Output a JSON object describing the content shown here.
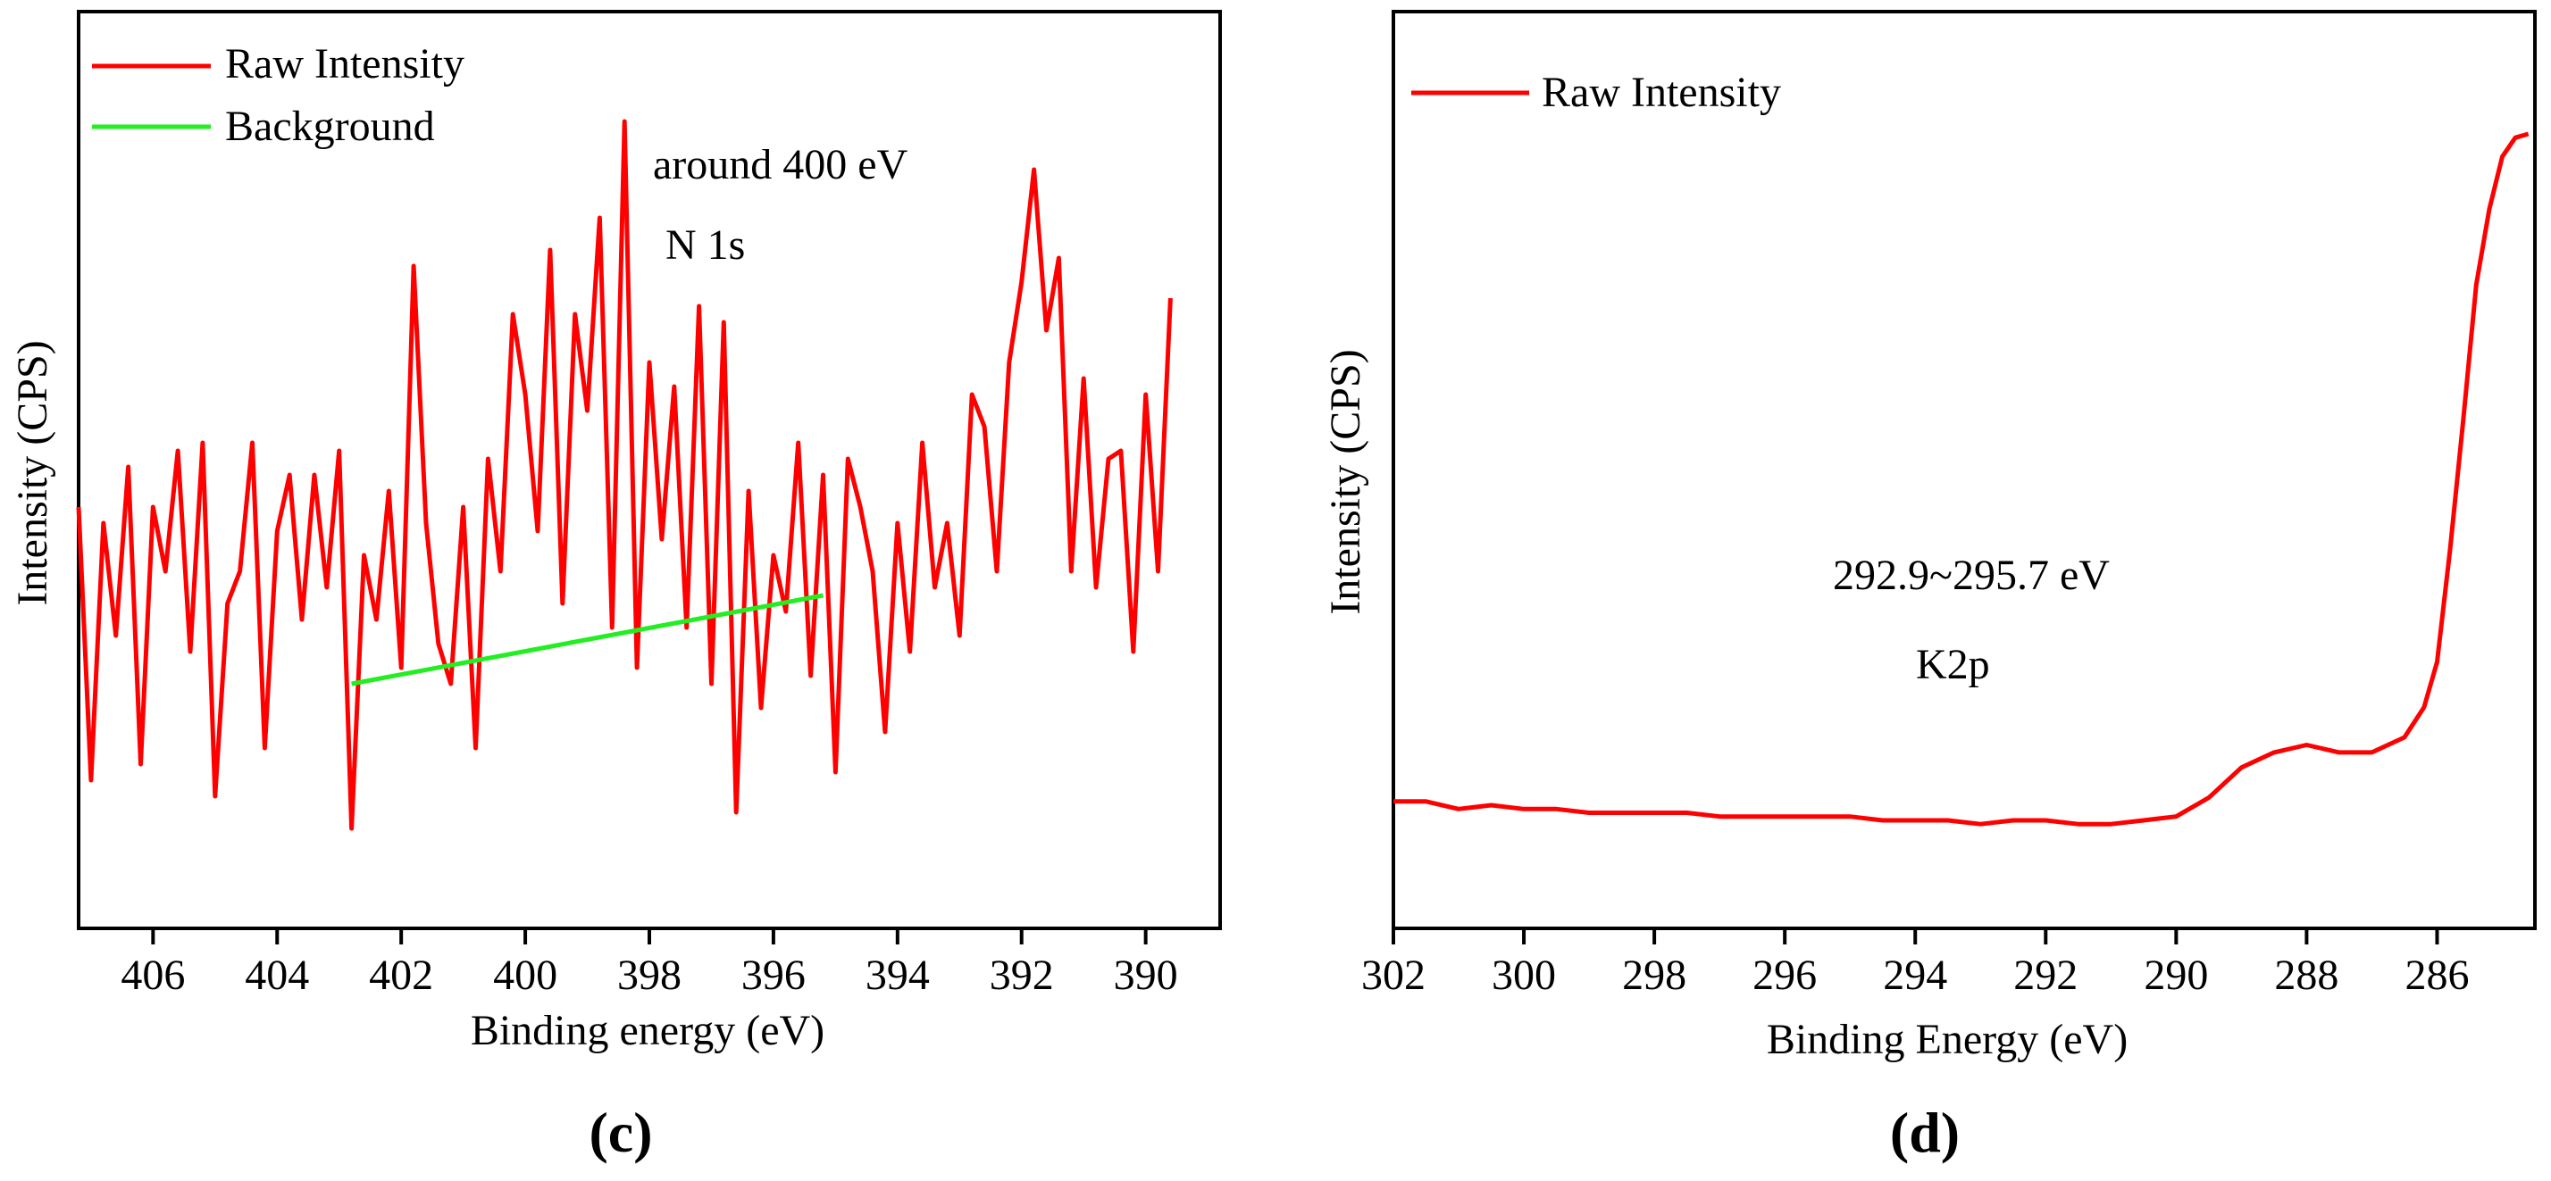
{
  "chart_data": [
    {
      "panel_label": "(c)",
      "type": "line",
      "xlabel": "Binding energy (eV)",
      "ylabel": "Intensity (CPS)",
      "xlim": [
        407.2,
        388.8
      ],
      "ylim": [
        0,
        100
      ],
      "x_ticks": [
        406,
        404,
        402,
        400,
        398,
        396,
        394,
        392,
        390
      ],
      "legend": {
        "position": "top-left",
        "entries": [
          "Raw Intensity",
          "Background"
        ]
      },
      "annotations": [
        "around 400 eV",
        "N 1s"
      ],
      "series": [
        {
          "name": "Raw Intensity",
          "color": "#ff0000",
          "x": [
            407.2,
            407.0,
            406.8,
            406.6,
            406.4,
            406.2,
            406.0,
            405.8,
            405.6,
            405.4,
            405.2,
            405.0,
            404.8,
            404.6,
            404.4,
            404.2,
            404.0,
            403.8,
            403.6,
            403.4,
            403.2,
            403.0,
            402.8,
            402.6,
            402.4,
            402.2,
            402.0,
            401.8,
            401.6,
            401.4,
            401.2,
            401.0,
            400.8,
            400.6,
            400.4,
            400.2,
            400.0,
            399.8,
            399.6,
            399.4,
            399.2,
            399.0,
            398.8,
            398.6,
            398.4,
            398.2,
            398.0,
            397.8,
            397.6,
            397.4,
            397.2,
            397.0,
            396.8,
            396.6,
            396.4,
            396.2,
            396.0,
            395.8,
            395.6,
            395.4,
            395.2,
            395.0,
            394.8,
            394.6,
            394.4,
            394.2,
            394.0,
            393.8,
            393.6,
            393.4,
            393.2,
            393.0,
            392.8,
            392.6,
            392.4,
            392.2,
            392.0,
            391.8,
            391.6,
            391.4,
            391.2,
            391.0,
            390.8,
            390.6,
            390.4,
            390.2,
            390.0,
            389.8,
            389.6
          ],
          "values": [
            48,
            14,
            46,
            32,
            53,
            16,
            48,
            40,
            55,
            30,
            56,
            12,
            36,
            40,
            56,
            18,
            45,
            52,
            34,
            52,
            38,
            55,
            8,
            42,
            34,
            50,
            28,
            78,
            46,
            31,
            26,
            48,
            18,
            54,
            40,
            72,
            62,
            45,
            80,
            36,
            72,
            60,
            84,
            33,
            96,
            28,
            66,
            44,
            63,
            33,
            73,
            26,
            71,
            10,
            50,
            23,
            42,
            35,
            56,
            27,
            52,
            15,
            54,
            48,
            40,
            20,
            46,
            30,
            56,
            38,
            46,
            32,
            62,
            58,
            40,
            66,
            76,
            90,
            70,
            79,
            40,
            64,
            38,
            54,
            55,
            30,
            62,
            40,
            74
          ]
        },
        {
          "name": "Background",
          "color": "#22ee22",
          "x": [
            402.8,
            395.2
          ],
          "values": [
            26,
            37
          ]
        }
      ]
    },
    {
      "panel_label": "(d)",
      "type": "line",
      "xlabel": "Binding Energy (eV)",
      "ylabel": "Intensity (CPS)",
      "xlim": [
        302,
        284.5
      ],
      "ylim": [
        0,
        100
      ],
      "x_ticks": [
        302,
        300,
        298,
        296,
        294,
        292,
        290,
        288,
        286
      ],
      "legend": {
        "position": "top-left",
        "entries": [
          "Raw Intensity"
        ]
      },
      "annotations": [
        "292.9~295.7 eV",
        "K2p"
      ],
      "series": [
        {
          "name": "Raw Intensity",
          "color": "#ff0000",
          "x": [
            302,
            301.5,
            301,
            300.5,
            300,
            299.5,
            299,
            298.5,
            298,
            297.5,
            297,
            296.5,
            296,
            295.5,
            295,
            294.5,
            294,
            293.5,
            293,
            292.5,
            292,
            291.5,
            291,
            290.5,
            290,
            289.5,
            289,
            288.5,
            288,
            287.5,
            287,
            286.5,
            286.2,
            286,
            285.8,
            285.6,
            285.4,
            285.2,
            285,
            284.8,
            284.6
          ],
          "values": [
            11.5,
            11.5,
            10.5,
            11,
            10.5,
            10.5,
            10,
            10,
            10,
            10,
            9.5,
            9.5,
            9.5,
            9.5,
            9.5,
            9,
            9,
            9,
            8.5,
            9,
            9,
            8.5,
            8.5,
            9,
            9.5,
            12,
            16,
            18,
            19,
            18,
            18,
            20,
            24,
            30,
            45,
            62,
            80,
            90,
            97,
            99.5,
            100
          ]
        }
      ]
    }
  ]
}
